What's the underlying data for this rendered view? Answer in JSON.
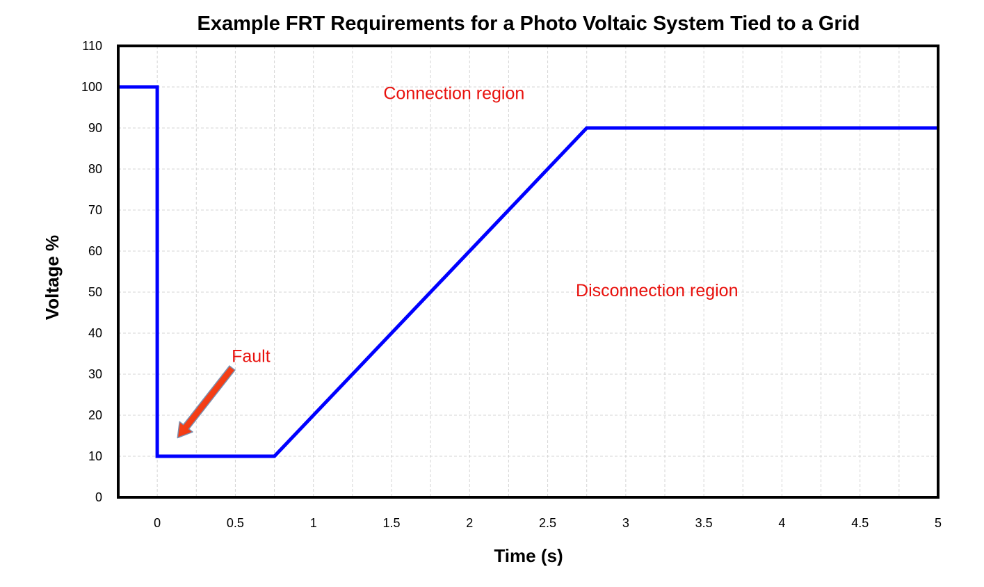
{
  "chart_data": {
    "type": "line",
    "title": "Example FRT Requirements for a Photo Voltaic System Tied to a Grid",
    "xlabel": "Time (s)",
    "ylabel": "Voltage %",
    "xlim": [
      -0.25,
      5
    ],
    "ylim": [
      0,
      110
    ],
    "x_ticks": [
      "0",
      "0.5",
      "1",
      "1.5",
      "2",
      "2.5",
      "3",
      "3.5",
      "4",
      "4.5",
      "5"
    ],
    "y_ticks": [
      "0",
      "10",
      "20",
      "30",
      "40",
      "50",
      "60",
      "70",
      "80",
      "90",
      "100",
      "110"
    ],
    "grid": true,
    "series": [
      {
        "x": [
          -0.25,
          0,
          0,
          0.75,
          2.75,
          5
        ],
        "y": [
          100,
          100,
          10,
          10,
          90,
          90
        ],
        "color": "#0000ff"
      }
    ],
    "annotations": [
      {
        "text": "Connection region",
        "x": 1.9,
        "y": 97,
        "color": "#e8100c"
      },
      {
        "text": "Disconnection region",
        "x": 3.2,
        "y": 49,
        "color": "#e8100c"
      },
      {
        "text": "Fault",
        "x": 0.6,
        "y": 33,
        "color": "#e8100c"
      }
    ],
    "arrow": {
      "from": [
        0.48,
        31.5
      ],
      "to": [
        0.13,
        14.5
      ],
      "color": "#ff2a00"
    }
  }
}
